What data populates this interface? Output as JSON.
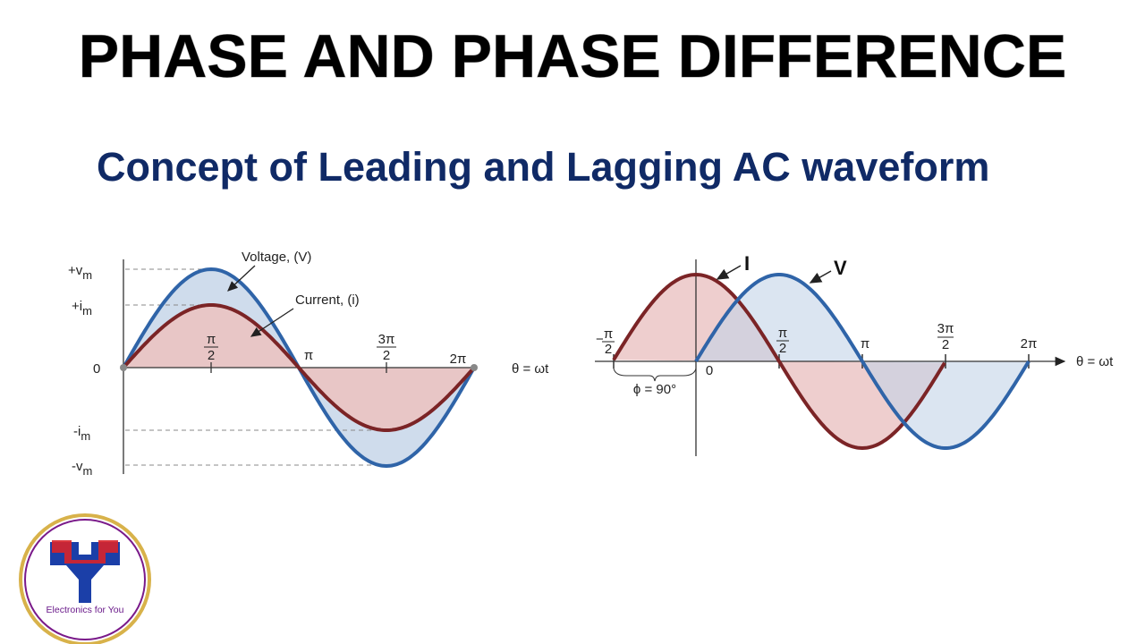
{
  "header": {
    "title": "PHASE AND PHASE DIFFERENCE",
    "subtitle": "Concept of Leading and Lagging AC waveform"
  },
  "left_diagram": {
    "voltage_label": "Voltage, (V)",
    "current_label": "Current, (i)",
    "y_labels": [
      {
        "text": "+v",
        "sub": "m"
      },
      {
        "text": "+i",
        "sub": "m"
      },
      {
        "text": "0"
      },
      {
        "text": "-i",
        "sub": "m"
      },
      {
        "text": "-v",
        "sub": "m"
      }
    ],
    "x_labels": [
      {
        "num": "π",
        "den": "2"
      },
      {
        "text": "π"
      },
      {
        "num": "3π",
        "den": "2"
      },
      {
        "text": "2π"
      }
    ],
    "axis_label": "θ = ωt"
  },
  "right_diagram": {
    "current_label": "I",
    "voltage_label": "V",
    "x_labels": [
      {
        "sign": "−",
        "num": "π",
        "den": "2"
      },
      {
        "text": "0"
      },
      {
        "num": "π",
        "den": "2"
      },
      {
        "text": "π"
      },
      {
        "num": "3π",
        "den": "2"
      },
      {
        "text": "2π"
      }
    ],
    "phase_label": "ϕ = 90°",
    "axis_label": "θ = ωt"
  },
  "logo": {
    "text": "Electronics for You"
  }
}
